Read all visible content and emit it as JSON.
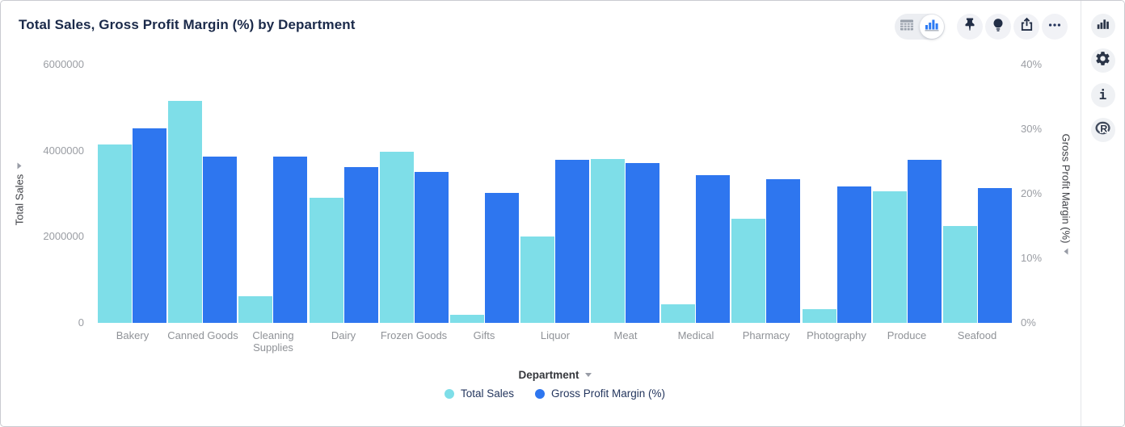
{
  "widget": {
    "title": "Total Sales, Gross Profit Margin (%) by Department"
  },
  "toolbar": {
    "view_toggle": {
      "options": [
        "table-view",
        "chart-view"
      ],
      "selected": "chart-view"
    },
    "buttons": [
      "pin",
      "lightbulb",
      "export",
      "more-options"
    ]
  },
  "sidebar": {
    "buttons": [
      "chart-type",
      "settings",
      "info",
      "r-script"
    ],
    "info_glyph": "i",
    "r_glyph": "R"
  },
  "colors": {
    "series_cyan": "#7EDEE8",
    "series_blue": "#2E76EF",
    "icon_navy": "#232F47",
    "title_navy": "#1B2A4A",
    "tick_gray": "#9A9DA3"
  },
  "chart_data": {
    "type": "bar",
    "title": "Total Sales, Gross Profit Margin (%) by Department",
    "grid": false,
    "categories": [
      "Bakery",
      "Canned Goods",
      "Cleaning Supplies",
      "Dairy",
      "Frozen Goods",
      "Gifts",
      "Liquor",
      "Meat",
      "Medical",
      "Pharmacy",
      "Photography",
      "Produce",
      "Seafood"
    ],
    "series": [
      {
        "name": "Total Sales",
        "axis": "left",
        "color": "#7EDEE8",
        "values": [
          4150000,
          5150000,
          615000,
          2900000,
          3970000,
          190000,
          2000000,
          3800000,
          430000,
          2420000,
          320000,
          3060000,
          2250000
        ]
      },
      {
        "name": "Gross Profit Margin (%)",
        "axis": "right",
        "color": "#2E76EF",
        "values": [
          30.1,
          25.8,
          25.7,
          24.1,
          23.4,
          20.1,
          25.3,
          24.7,
          22.9,
          22.2,
          21.1,
          25.2,
          20.9
        ]
      }
    ],
    "left_axis": {
      "title": "Total Sales",
      "min": 0,
      "max": 6000000,
      "tick_labels": [
        "0",
        "2000000",
        "4000000",
        "6000000"
      ]
    },
    "right_axis": {
      "title": "Gross Profit Margin (%)",
      "min": 0,
      "max": 40,
      "tick_labels": [
        "0%",
        "10%",
        "20%",
        "30%",
        "40%"
      ]
    },
    "x_axis": {
      "title": "Department"
    },
    "legend": {
      "position": "bottom",
      "items": [
        "Total Sales",
        "Gross Profit Margin (%)"
      ]
    }
  }
}
